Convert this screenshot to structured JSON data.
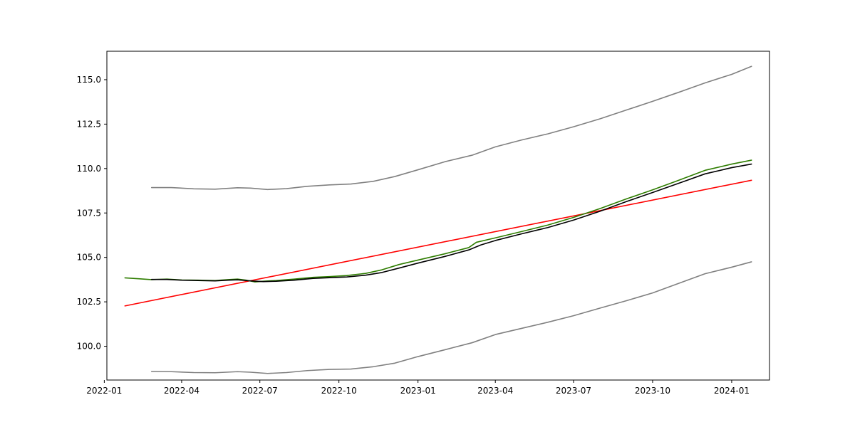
{
  "chart_data": {
    "type": "line",
    "title": "",
    "xlabel": "",
    "ylabel": "",
    "grid": false,
    "legend": "none",
    "xlim": [
      "2022-01-04",
      "2024-02-14"
    ],
    "ylim": [
      98.1,
      116.6
    ],
    "x_ticks": [
      "2022-01",
      "2022-04",
      "2022-07",
      "2022-10",
      "2023-01",
      "2023-04",
      "2023-07",
      "2023-10",
      "2024-01"
    ],
    "y_ticks": [
      100.0,
      102.5,
      105.0,
      107.5,
      110.0,
      112.5,
      115.0
    ],
    "y_tick_labels": [
      "100.0",
      "102.5",
      "105.0",
      "107.5",
      "110.0",
      "112.5",
      "115.0"
    ],
    "series": [
      {
        "color": "#808080",
        "points": [
          [
            "2022-02-25",
            108.93
          ],
          [
            "2022-03-20",
            108.93
          ],
          [
            "2022-04-15",
            108.86
          ],
          [
            "2022-05-10",
            108.84
          ],
          [
            "2022-06-05",
            108.92
          ],
          [
            "2022-06-20",
            108.9
          ],
          [
            "2022-07-10",
            108.82
          ],
          [
            "2022-08-01",
            108.87
          ],
          [
            "2022-08-25",
            109.0
          ],
          [
            "2022-09-20",
            109.08
          ],
          [
            "2022-10-15",
            109.13
          ],
          [
            "2022-11-10",
            109.28
          ],
          [
            "2022-12-05",
            109.55
          ],
          [
            "2023-01-01",
            109.93
          ],
          [
            "2023-02-01",
            110.38
          ],
          [
            "2023-03-05",
            110.75
          ],
          [
            "2023-04-01",
            111.22
          ],
          [
            "2023-05-01",
            111.6
          ],
          [
            "2023-06-01",
            111.95
          ],
          [
            "2023-07-01",
            112.35
          ],
          [
            "2023-08-01",
            112.8
          ],
          [
            "2023-09-01",
            113.3
          ],
          [
            "2023-10-01",
            113.78
          ],
          [
            "2023-11-01",
            114.3
          ],
          [
            "2023-12-01",
            114.82
          ],
          [
            "2024-01-01",
            115.3
          ],
          [
            "2024-01-24",
            115.75
          ]
        ]
      },
      {
        "color": "#808080",
        "points": [
          [
            "2022-02-25",
            98.58
          ],
          [
            "2022-03-20",
            98.57
          ],
          [
            "2022-04-15",
            98.52
          ],
          [
            "2022-05-10",
            98.51
          ],
          [
            "2022-06-05",
            98.57
          ],
          [
            "2022-06-20",
            98.54
          ],
          [
            "2022-07-10",
            98.47
          ],
          [
            "2022-08-01",
            98.52
          ],
          [
            "2022-08-25",
            98.63
          ],
          [
            "2022-09-20",
            98.7
          ],
          [
            "2022-10-15",
            98.72
          ],
          [
            "2022-11-10",
            98.85
          ],
          [
            "2022-12-05",
            99.05
          ],
          [
            "2023-01-01",
            99.42
          ],
          [
            "2023-02-01",
            99.8
          ],
          [
            "2023-03-05",
            100.2
          ],
          [
            "2023-04-01",
            100.66
          ],
          [
            "2023-05-01",
            101.0
          ],
          [
            "2023-06-01",
            101.35
          ],
          [
            "2023-07-01",
            101.72
          ],
          [
            "2023-08-01",
            102.15
          ],
          [
            "2023-09-01",
            102.57
          ],
          [
            "2023-10-01",
            103.0
          ],
          [
            "2023-11-01",
            103.55
          ],
          [
            "2023-12-01",
            104.08
          ],
          [
            "2024-01-01",
            104.45
          ],
          [
            "2024-01-24",
            104.75
          ]
        ]
      },
      {
        "color": "#ff0000",
        "points": [
          [
            "2022-01-25",
            102.27
          ],
          [
            "2024-01-24",
            109.34
          ]
        ]
      },
      {
        "color": "#2e7d00",
        "points": [
          [
            "2022-01-25",
            103.85
          ],
          [
            "2022-02-10",
            103.8
          ],
          [
            "2022-02-25",
            103.75
          ],
          [
            "2022-03-15",
            103.78
          ],
          [
            "2022-04-01",
            103.73
          ],
          [
            "2022-04-20",
            103.72
          ],
          [
            "2022-05-10",
            103.7
          ],
          [
            "2022-05-25",
            103.75
          ],
          [
            "2022-06-05",
            103.78
          ],
          [
            "2022-06-15",
            103.72
          ],
          [
            "2022-06-25",
            103.62
          ],
          [
            "2022-07-05",
            103.66
          ],
          [
            "2022-07-20",
            103.7
          ],
          [
            "2022-08-10",
            103.78
          ],
          [
            "2022-09-01",
            103.88
          ],
          [
            "2022-09-20",
            103.92
          ],
          [
            "2022-10-10",
            103.98
          ],
          [
            "2022-11-01",
            104.1
          ],
          [
            "2022-11-20",
            104.3
          ],
          [
            "2022-12-10",
            104.6
          ],
          [
            "2023-01-01",
            104.85
          ],
          [
            "2023-02-01",
            105.2
          ],
          [
            "2023-03-01",
            105.55
          ],
          [
            "2023-03-10",
            105.85
          ],
          [
            "2023-04-01",
            106.1
          ],
          [
            "2023-05-01",
            106.45
          ],
          [
            "2023-06-01",
            106.82
          ],
          [
            "2023-07-01",
            107.25
          ],
          [
            "2023-08-01",
            107.75
          ],
          [
            "2023-09-01",
            108.3
          ],
          [
            "2023-10-01",
            108.8
          ],
          [
            "2023-11-01",
            109.35
          ],
          [
            "2023-12-01",
            109.9
          ],
          [
            "2024-01-01",
            110.25
          ],
          [
            "2024-01-24",
            110.47
          ]
        ]
      },
      {
        "color": "#000000",
        "points": [
          [
            "2022-02-25",
            103.76
          ],
          [
            "2022-03-15",
            103.76
          ],
          [
            "2022-04-01",
            103.72
          ],
          [
            "2022-04-20",
            103.7
          ],
          [
            "2022-05-10",
            103.68
          ],
          [
            "2022-05-25",
            103.72
          ],
          [
            "2022-06-05",
            103.74
          ],
          [
            "2022-06-20",
            103.68
          ],
          [
            "2022-07-05",
            103.64
          ],
          [
            "2022-07-20",
            103.66
          ],
          [
            "2022-08-10",
            103.72
          ],
          [
            "2022-09-01",
            103.82
          ],
          [
            "2022-09-20",
            103.86
          ],
          [
            "2022-10-10",
            103.9
          ],
          [
            "2022-11-01",
            104.0
          ],
          [
            "2022-11-20",
            104.15
          ],
          [
            "2022-12-10",
            104.4
          ],
          [
            "2023-01-01",
            104.68
          ],
          [
            "2023-02-01",
            105.05
          ],
          [
            "2023-03-01",
            105.42
          ],
          [
            "2023-03-15",
            105.7
          ],
          [
            "2023-04-01",
            105.95
          ],
          [
            "2023-05-01",
            106.32
          ],
          [
            "2023-06-01",
            106.68
          ],
          [
            "2023-07-01",
            107.1
          ],
          [
            "2023-08-01",
            107.6
          ],
          [
            "2023-09-01",
            108.15
          ],
          [
            "2023-10-01",
            108.65
          ],
          [
            "2023-11-01",
            109.18
          ],
          [
            "2023-12-01",
            109.7
          ],
          [
            "2024-01-01",
            110.05
          ],
          [
            "2024-01-24",
            110.25
          ]
        ]
      }
    ]
  }
}
